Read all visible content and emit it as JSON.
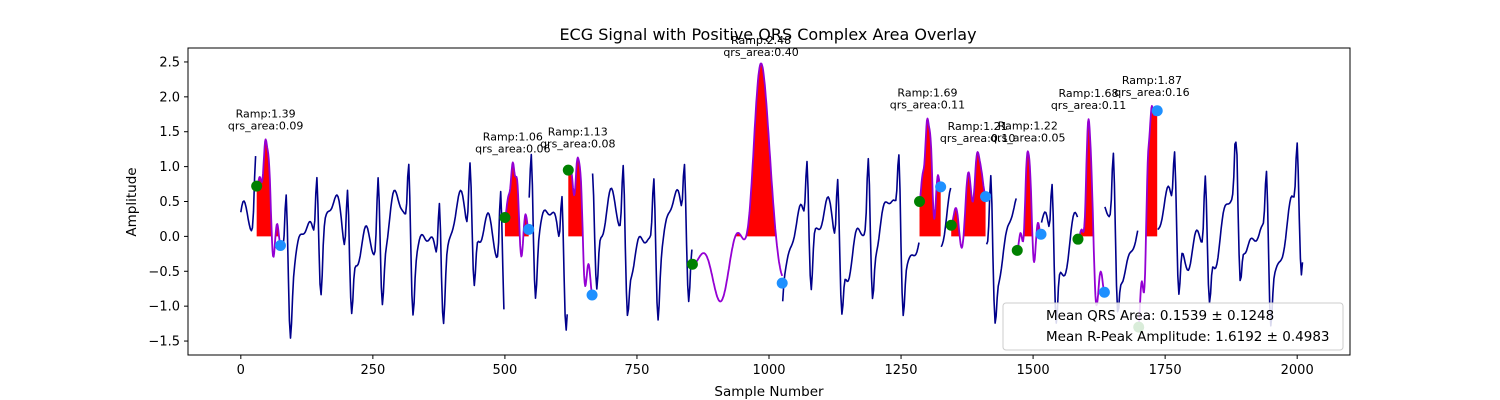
{
  "chart_data": {
    "type": "line",
    "title": "ECG Signal with Positive QRS Complex Area Overlay",
    "xlabel": "Sample Number",
    "ylabel": "Amplitude",
    "xlim": [
      -100,
      2100
    ],
    "ylim": [
      -1.7,
      2.7
    ],
    "xticks": [
      0,
      250,
      500,
      750,
      1000,
      1250,
      1500,
      1750,
      2000
    ],
    "yticks": [
      -1.5,
      -1.0,
      -0.5,
      0.0,
      0.5,
      1.0,
      1.5,
      2.0,
      2.5
    ],
    "ytick_labels": [
      "−1.5",
      "−1.0",
      "−0.5",
      "0.0",
      "0.5",
      "1.0",
      "1.5",
      "2.0",
      "2.5"
    ],
    "grid": false,
    "colors": {
      "signal": "#00008b",
      "qrs_segment": "#9400d3",
      "area_fill": "#ff0000",
      "onset_marker": "#008000",
      "offset_marker": "#1e90ff"
    },
    "beats": [
      {
        "onset_x": 30,
        "onset_y": 0.72,
        "peak_x": 47,
        "r_amp": 1.39,
        "offset_x": 75,
        "offset_y": -0.13,
        "ann_ramp": "Ramp:1.39",
        "ann_area": "qrs_area:0.09"
      },
      {
        "onset_x": 500,
        "onset_y": 0.27,
        "peak_x": 515,
        "r_amp": 1.06,
        "offset_x": 545,
        "offset_y": 0.1,
        "ann_ramp": "Ramp:1.06",
        "ann_area": "qrs_area:0.06"
      },
      {
        "onset_x": 620,
        "onset_y": 0.95,
        "peak_x": 638,
        "r_amp": 1.13,
        "offset_x": 665,
        "offset_y": -0.84,
        "ann_ramp": "Ramp:1.13",
        "ann_area": "qrs_area:0.08"
      },
      {
        "onset_x": 855,
        "onset_y": -0.4,
        "peak_x": 985,
        "r_amp": 2.48,
        "offset_x": 1025,
        "offset_y": -0.67,
        "ann_ramp": "Ramp:2.48",
        "ann_area": "qrs_area:0.40"
      },
      {
        "onset_x": 1285,
        "onset_y": 0.5,
        "peak_x": 1300,
        "r_amp": 1.69,
        "offset_x": 1325,
        "offset_y": 0.71,
        "ann_ramp": "Ramp:1.69",
        "ann_area": "qrs_area:0.11"
      },
      {
        "onset_x": 1345,
        "onset_y": 0.16,
        "peak_x": 1395,
        "r_amp": 1.21,
        "offset_x": 1410,
        "offset_y": 0.57,
        "ann_ramp": "Ramp:1.21",
        "ann_area": "qrs_area:0.10"
      },
      {
        "onset_x": 1470,
        "onset_y": -0.2,
        "peak_x": 1490,
        "r_amp": 1.22,
        "offset_x": 1515,
        "offset_y": 0.03,
        "ann_ramp": "Ramp:1.22",
        "ann_area": "qrs_area:0.05"
      },
      {
        "onset_x": 1585,
        "onset_y": -0.04,
        "peak_x": 1605,
        "r_amp": 1.68,
        "offset_x": 1635,
        "offset_y": -0.8,
        "ann_ramp": "Ramp:1.68",
        "ann_area": "qrs_area:0.11"
      },
      {
        "onset_x": 1700,
        "onset_y": -1.3,
        "peak_x": 1725,
        "r_amp": 1.87,
        "offset_x": 1735,
        "offset_y": 1.8,
        "ann_ramp": "Ramp:1.87",
        "ann_area": "qrs_area:0.16"
      }
    ],
    "legend": {
      "placement": "lower-right",
      "entries": [
        "Mean QRS Area: 0.1539 ± 0.1248",
        "Mean R-Peak Amplitude: 1.6192 ± 0.4983"
      ]
    }
  }
}
